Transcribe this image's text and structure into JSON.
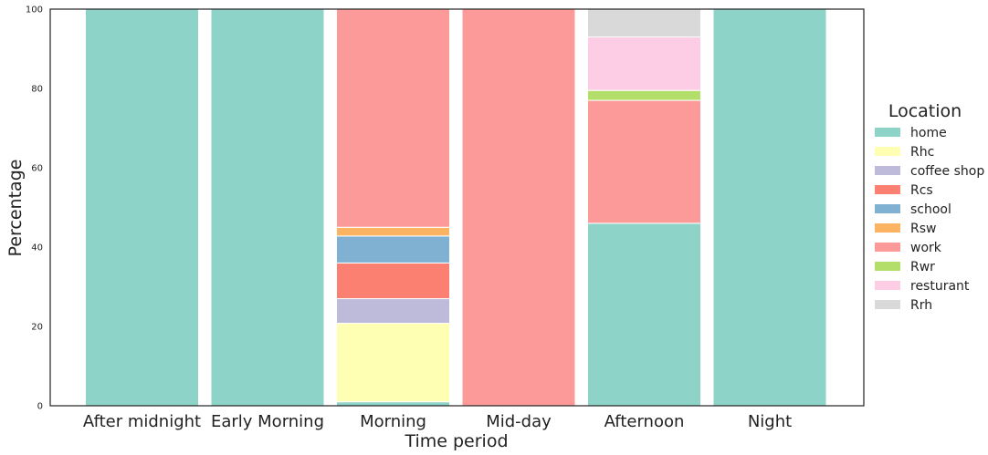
{
  "chart_data": {
    "type": "bar",
    "stacked": true,
    "categories": [
      "After midnight",
      "Early Morning",
      "Morning",
      "Mid-day",
      "Afternoon",
      "Night"
    ],
    "series": [
      {
        "name": "home",
        "color": "#8dd3c7",
        "values": [
          100,
          100,
          1,
          0,
          46,
          100
        ]
      },
      {
        "name": "Rhc",
        "color": "#ffffb3",
        "values": [
          0,
          0,
          19.8,
          0,
          0,
          0
        ]
      },
      {
        "name": "coffee shop",
        "color": "#bebada",
        "values": [
          0,
          0,
          6.2,
          0,
          0,
          0
        ]
      },
      {
        "name": "Rcs",
        "color": "#fb8072",
        "values": [
          0,
          0,
          9,
          0,
          0,
          0
        ]
      },
      {
        "name": "school",
        "color": "#80b1d3",
        "values": [
          0,
          0,
          6.8,
          0,
          0,
          0
        ]
      },
      {
        "name": "Rsw",
        "color": "#fdb462",
        "values": [
          0,
          0,
          2.2,
          0,
          0,
          0
        ]
      },
      {
        "name": "work",
        "color": "#fb9a99",
        "values": [
          0,
          0,
          55,
          100,
          31,
          0
        ]
      },
      {
        "name": "Rwr",
        "color": "#b3de69",
        "values": [
          0,
          0,
          0,
          0,
          2.5,
          0
        ]
      },
      {
        "name": "resturant",
        "color": "#fccde5",
        "values": [
          0,
          0,
          0,
          0,
          13.5,
          0
        ]
      },
      {
        "name": "Rrh",
        "color": "#d9d9d9",
        "values": [
          0,
          0,
          0,
          0,
          7,
          0
        ]
      }
    ],
    "xlabel": "Time period",
    "ylabel": "Percentage",
    "ylim": [
      0,
      100
    ],
    "yticks": [
      0,
      20,
      40,
      60,
      80,
      100
    ],
    "legend_title": "Location",
    "legend_position": "right",
    "grid": false
  }
}
